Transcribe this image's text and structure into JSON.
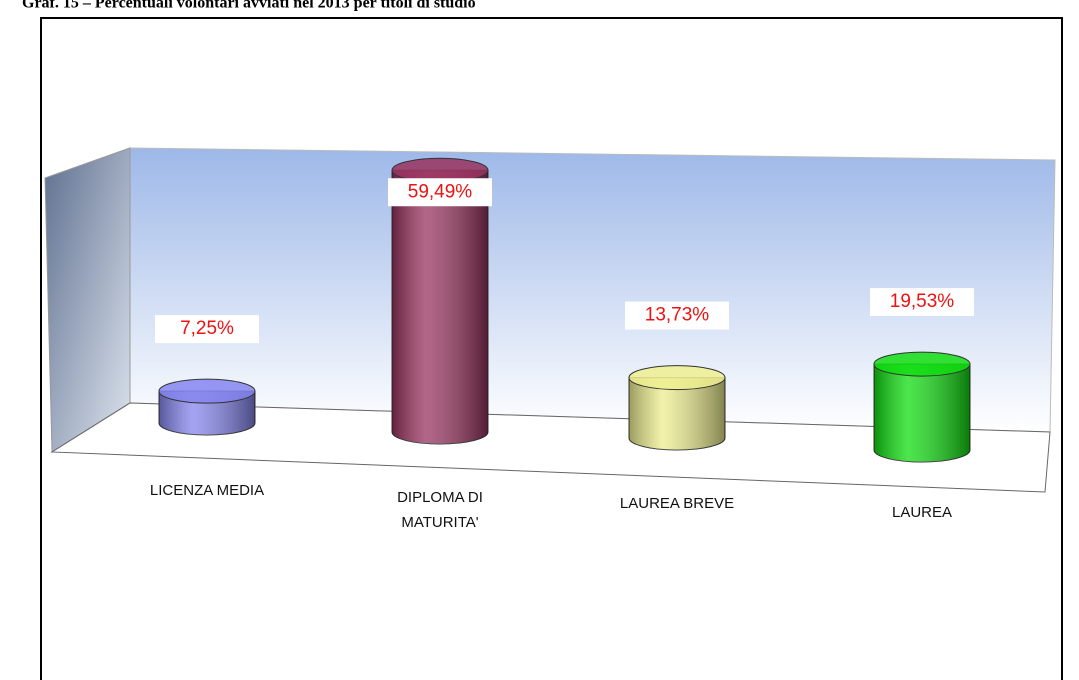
{
  "chart_data": {
    "type": "cylinder",
    "title": "Graf. 15 – Percentuali volontari avviati nel 2013 per titoli di studio",
    "categories": [
      "LICENZA MEDIA",
      "DIPLOMA DI MATURITA'",
      "LAUREA BREVE",
      "LAUREA"
    ],
    "values": [
      7.25,
      59.49,
      13.73,
      19.53
    ],
    "value_labels": [
      "7,25%",
      "59,49%",
      "13,73%",
      "19,53%"
    ],
    "colors": [
      "#8585ee",
      "#99335f",
      "#eeee90",
      "#11dd11"
    ]
  }
}
